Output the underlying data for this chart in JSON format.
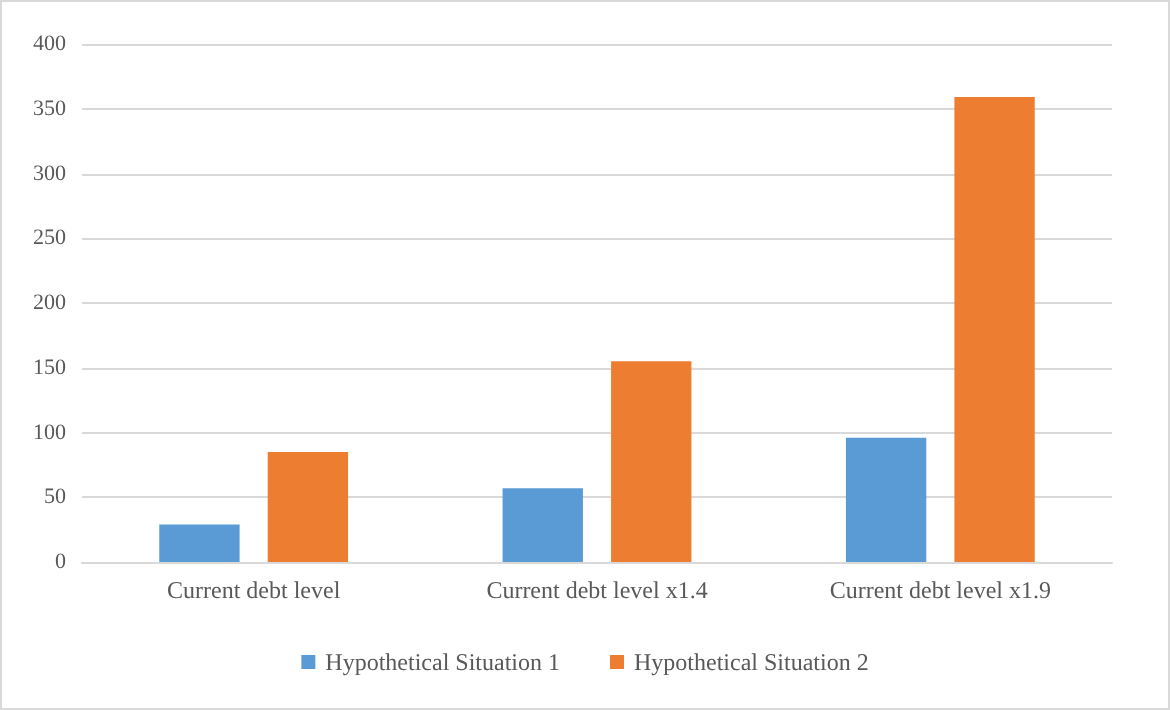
{
  "chart_data": {
    "type": "bar",
    "categories": [
      "Current debt level",
      "Current debt level x1.4",
      "Current debt level x1.9"
    ],
    "series": [
      {
        "name": "Hypothetical Situation 1",
        "color": "#5b9bd5",
        "values": [
          29,
          57,
          96
        ]
      },
      {
        "name": "Hypothetical Situation 2",
        "color": "#ed7d31",
        "values": [
          85,
          155,
          359
        ]
      }
    ],
    "ylim": [
      0,
      400
    ],
    "yticks": [
      0,
      50,
      100,
      150,
      200,
      250,
      300,
      350,
      400
    ],
    "grid": "y",
    "legend": "bottom"
  }
}
